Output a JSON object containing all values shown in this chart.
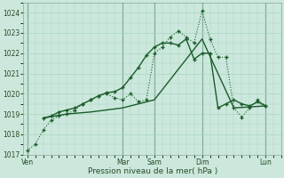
{
  "title": "",
  "xlabel": "Pression niveau de la mer( hPa )",
  "ylabel": "",
  "background_color": "#cce8dc",
  "grid_color": "#a8d4c4",
  "line_color": "#1a5c2a",
  "ylim": [
    1017.0,
    1024.5
  ],
  "yticks": [
    1017,
    1018,
    1019,
    1020,
    1021,
    1022,
    1023,
    1024
  ],
  "day_labels": [
    "Ven",
    "Mar",
    "Sam",
    "Dim",
    "Lun"
  ],
  "day_positions": [
    0,
    12,
    16,
    22,
    30
  ],
  "xlim": [
    -0.5,
    32
  ],
  "series1_x": [
    0,
    1,
    2,
    3,
    4,
    5,
    6,
    7,
    8,
    9,
    10,
    11,
    12,
    13,
    14,
    15,
    16,
    17,
    18,
    19,
    20,
    21,
    22,
    23,
    24,
    25,
    26,
    27,
    28,
    29,
    30
  ],
  "series1_y": [
    1017.2,
    1017.5,
    1018.2,
    1018.7,
    1018.9,
    1019.0,
    1019.2,
    1019.5,
    1019.7,
    1019.9,
    1020.0,
    1019.8,
    1019.7,
    1020.0,
    1019.6,
    1019.7,
    1022.0,
    1022.3,
    1022.8,
    1023.1,
    1022.8,
    1022.5,
    1024.1,
    1022.7,
    1021.8,
    1021.8,
    1019.3,
    1018.85,
    1019.3,
    1019.7,
    1019.4
  ],
  "series2_x": [
    2,
    3,
    4,
    5,
    6,
    7,
    8,
    9,
    10,
    11,
    12,
    13,
    14,
    15,
    16,
    17,
    18,
    19,
    20,
    21,
    22,
    23,
    24,
    25,
    26,
    27,
    28,
    29,
    30
  ],
  "series2_y": [
    1018.8,
    1018.9,
    1019.1,
    1019.2,
    1019.3,
    1019.5,
    1019.7,
    1019.9,
    1020.05,
    1020.1,
    1020.3,
    1020.8,
    1021.3,
    1021.9,
    1022.3,
    1022.5,
    1022.5,
    1022.4,
    1022.7,
    1021.7,
    1022.0,
    1022.0,
    1019.3,
    1019.5,
    1019.7,
    1019.5,
    1019.4,
    1019.6,
    1019.4
  ],
  "series3_x": [
    2,
    5,
    8,
    12,
    16,
    22,
    26,
    30
  ],
  "series3_y": [
    1018.8,
    1019.0,
    1019.1,
    1019.3,
    1019.7,
    1022.7,
    1019.3,
    1019.4
  ]
}
